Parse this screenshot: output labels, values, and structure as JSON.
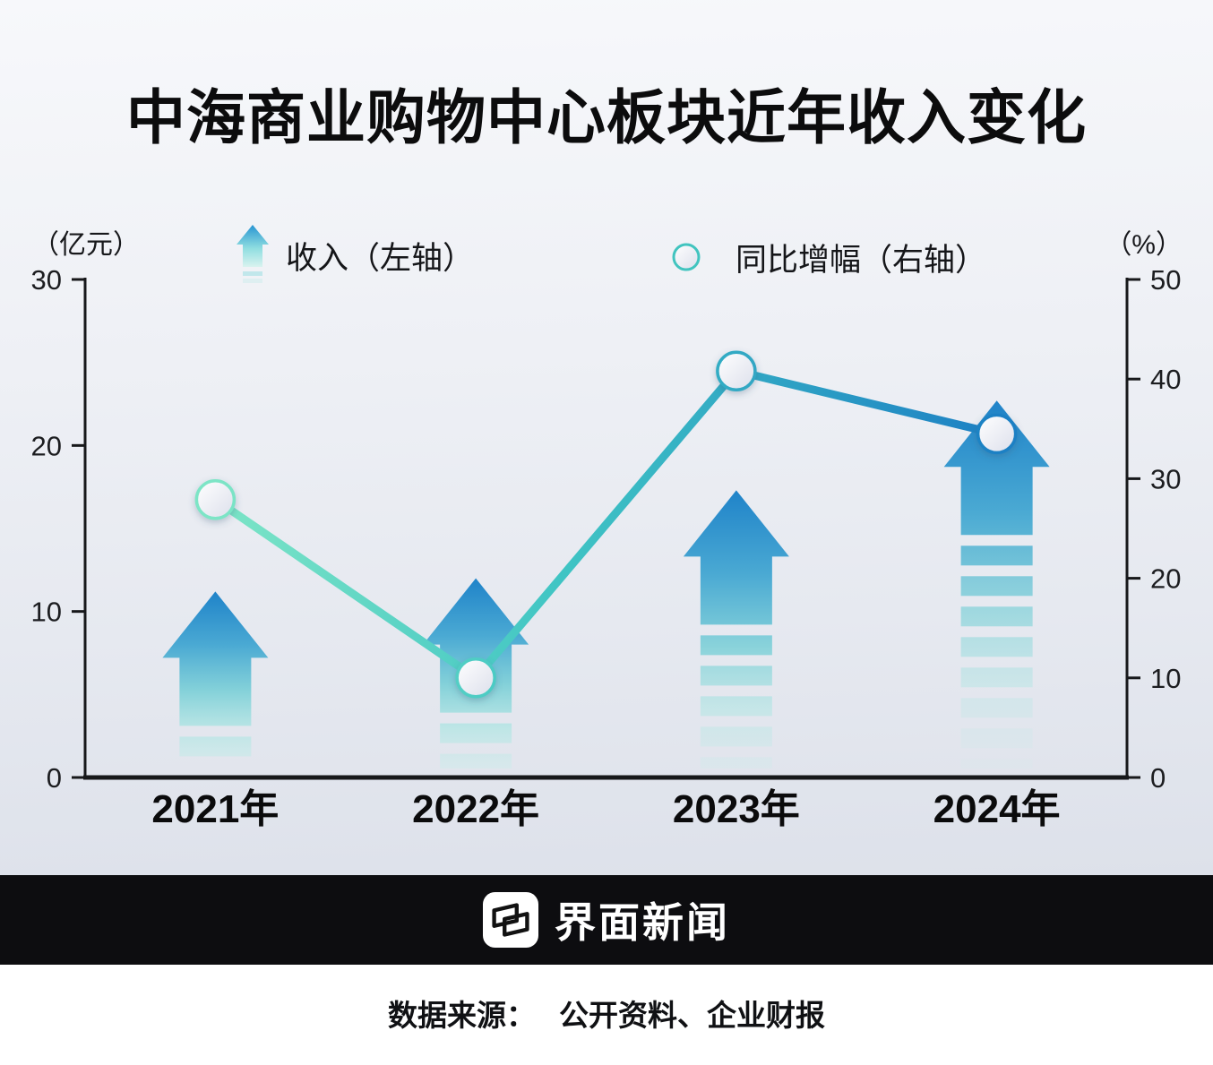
{
  "title": "中海商业购物中心板块近年收入变化",
  "axes": {
    "left_unit": "（亿元）",
    "right_unit": "（%）"
  },
  "legend": [
    {
      "icon": "arrow-up-icon",
      "label": "收入（左轴）"
    },
    {
      "icon": "line-marker-icon",
      "label": "同比增幅（右轴）"
    }
  ],
  "chart_data": {
    "type": "combo-bar-line",
    "title": "中海商业购物中心板块近年收入变化",
    "categories": [
      "2021年",
      "2022年",
      "2023年",
      "2024年"
    ],
    "series": [
      {
        "name": "收入（左轴）",
        "type": "bar",
        "axis": "left",
        "unit": "亿元",
        "values": [
          11.2,
          12.0,
          17.3,
          22.7
        ]
      },
      {
        "name": "同比增幅（右轴）",
        "type": "line",
        "axis": "right",
        "unit": "%",
        "values": [
          27.9,
          10.0,
          40.8,
          34.5
        ]
      }
    ],
    "left_axis": {
      "label": "（亿元）",
      "ticks": [
        0,
        10,
        20,
        30
      ],
      "lim": [
        0,
        30
      ]
    },
    "right_axis": {
      "label": "（%）",
      "ticks": [
        0,
        10,
        20,
        30,
        40,
        50
      ],
      "lim": [
        0,
        50
      ]
    },
    "grid": false,
    "legend_position": "top"
  },
  "footer": {
    "brand": "界面新闻",
    "source_label": "数据来源：",
    "source_value": "公开资料、企业财报"
  },
  "colors": {
    "bar_top": "#1f83c9",
    "bar_upper": "#4aa9d3",
    "bar_mid": "#7fd0d8",
    "bar_lower": "#b0e5e3",
    "bar_low": "#c9ecea",
    "line_start": "#7de5c6",
    "line_mid": "#3fc4c4",
    "line_end": "#1d80c4",
    "marker_ring": "#41c4bf",
    "axis": "#17181a",
    "text": "#0c0c0d",
    "footer_bg": "#0d0d10",
    "bg_top": "#f7f8fb",
    "bg_bottom": "#dde1ea"
  }
}
